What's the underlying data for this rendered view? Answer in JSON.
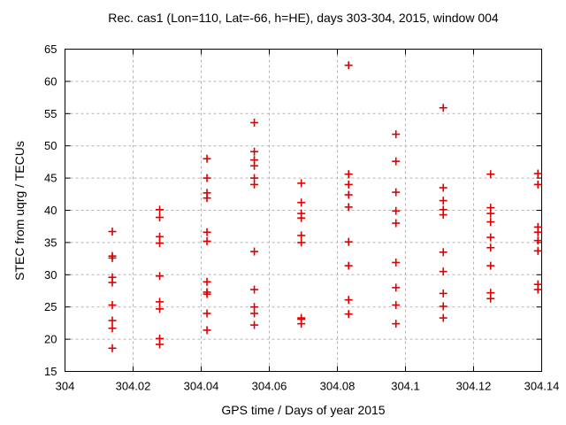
{
  "title": "Rec. cas1 (Lon=110, Lat=-66, h=HE), days 303-304, 2015, window 004",
  "chart_data": {
    "type": "scatter",
    "title": "Rec. cas1 (Lon=110, Lat=-66, h=HE), days 303-304, 2015, window 004",
    "xlabel": "GPS time / Days of year 2015",
    "ylabel": "STEC from uqrg / TECUs",
    "xlim": [
      304,
      304.14
    ],
    "ylim": [
      15,
      65
    ],
    "grid": true,
    "legend": "none",
    "marker": {
      "shape": "plus",
      "color": "#dd0000",
      "size": 9
    },
    "xticks": [
      {
        "value": 304,
        "label": "304"
      },
      {
        "value": 304.02,
        "label": "304.02"
      },
      {
        "value": 304.04,
        "label": "304.04"
      },
      {
        "value": 304.06,
        "label": "304.06"
      },
      {
        "value": 304.08,
        "label": "304.08"
      },
      {
        "value": 304.1,
        "label": "304.1"
      },
      {
        "value": 304.12,
        "label": "304.12"
      },
      {
        "value": 304.14,
        "label": "304.14"
      }
    ],
    "yticks": [
      {
        "value": 15,
        "label": "15"
      },
      {
        "value": 20,
        "label": "20"
      },
      {
        "value": 25,
        "label": "25"
      },
      {
        "value": 30,
        "label": "30"
      },
      {
        "value": 35,
        "label": "35"
      },
      {
        "value": 40,
        "label": "40"
      },
      {
        "value": 45,
        "label": "45"
      },
      {
        "value": 50,
        "label": "50"
      },
      {
        "value": 55,
        "label": "55"
      },
      {
        "value": 60,
        "label": "60"
      },
      {
        "value": 65,
        "label": "65"
      }
    ],
    "series": [
      {
        "name": "STEC",
        "points": [
          [
            304.0139,
            36.7
          ],
          [
            304.0139,
            32.9
          ],
          [
            304.0139,
            32.6
          ],
          [
            304.0139,
            29.6
          ],
          [
            304.0139,
            28.8
          ],
          [
            304.0139,
            25.3
          ],
          [
            304.0139,
            22.9
          ],
          [
            304.0139,
            21.7
          ],
          [
            304.0139,
            18.6
          ],
          [
            304.0278,
            40.1
          ],
          [
            304.0278,
            38.9
          ],
          [
            304.0278,
            35.9
          ],
          [
            304.0278,
            34.9
          ],
          [
            304.0278,
            29.8
          ],
          [
            304.0278,
            25.8
          ],
          [
            304.0278,
            24.7
          ],
          [
            304.0278,
            20.1
          ],
          [
            304.0278,
            19.2
          ],
          [
            304.0417,
            48.0
          ],
          [
            304.0417,
            45.0
          ],
          [
            304.0417,
            42.7
          ],
          [
            304.0417,
            41.9
          ],
          [
            304.0417,
            36.6
          ],
          [
            304.0417,
            35.2
          ],
          [
            304.0417,
            28.9
          ],
          [
            304.0417,
            27.3
          ],
          [
            304.0417,
            27.0
          ],
          [
            304.0417,
            24.0
          ],
          [
            304.0417,
            21.4
          ],
          [
            304.0556,
            53.6
          ],
          [
            304.0556,
            49.1
          ],
          [
            304.0556,
            47.8
          ],
          [
            304.0556,
            46.9
          ],
          [
            304.0556,
            45.0
          ],
          [
            304.0556,
            44.0
          ],
          [
            304.0556,
            33.6
          ],
          [
            304.0556,
            27.7
          ],
          [
            304.0556,
            25.0
          ],
          [
            304.0556,
            24.0
          ],
          [
            304.0556,
            22.2
          ],
          [
            304.0694,
            44.2
          ],
          [
            304.0694,
            41.2
          ],
          [
            304.0694,
            39.5
          ],
          [
            304.0694,
            38.8
          ],
          [
            304.0694,
            36.1
          ],
          [
            304.0694,
            35.0
          ],
          [
            304.0694,
            23.3
          ],
          [
            304.0694,
            23.1
          ],
          [
            304.0694,
            22.4
          ],
          [
            304.0833,
            62.5
          ],
          [
            304.0833,
            45.6
          ],
          [
            304.0833,
            44.0
          ],
          [
            304.0833,
            42.4
          ],
          [
            304.0833,
            40.5
          ],
          [
            304.0833,
            35.1
          ],
          [
            304.0833,
            31.4
          ],
          [
            304.0833,
            26.1
          ],
          [
            304.0833,
            23.9
          ],
          [
            304.0972,
            51.8
          ],
          [
            304.0972,
            47.6
          ],
          [
            304.0972,
            42.8
          ],
          [
            304.0972,
            39.9
          ],
          [
            304.0972,
            38.0
          ],
          [
            304.0972,
            31.9
          ],
          [
            304.0972,
            28.0
          ],
          [
            304.0972,
            25.3
          ],
          [
            304.0972,
            22.4
          ],
          [
            304.1111,
            55.9
          ],
          [
            304.1111,
            43.5
          ],
          [
            304.1111,
            41.5
          ],
          [
            304.1111,
            40.1
          ],
          [
            304.1111,
            39.3
          ],
          [
            304.1111,
            33.5
          ],
          [
            304.1111,
            30.5
          ],
          [
            304.1111,
            27.1
          ],
          [
            304.1111,
            25.1
          ],
          [
            304.1111,
            23.3
          ],
          [
            304.125,
            45.6
          ],
          [
            304.125,
            40.4
          ],
          [
            304.125,
            39.5
          ],
          [
            304.125,
            38.2
          ],
          [
            304.125,
            35.8
          ],
          [
            304.125,
            34.2
          ],
          [
            304.125,
            31.4
          ],
          [
            304.125,
            27.2
          ],
          [
            304.125,
            26.3
          ],
          [
            304.1389,
            45.7
          ],
          [
            304.1389,
            44.0
          ],
          [
            304.1389,
            37.4
          ],
          [
            304.1389,
            36.6
          ],
          [
            304.1389,
            35.3
          ],
          [
            304.1389,
            33.7
          ],
          [
            304.1389,
            28.5
          ],
          [
            304.1389,
            27.7
          ]
        ]
      }
    ]
  }
}
